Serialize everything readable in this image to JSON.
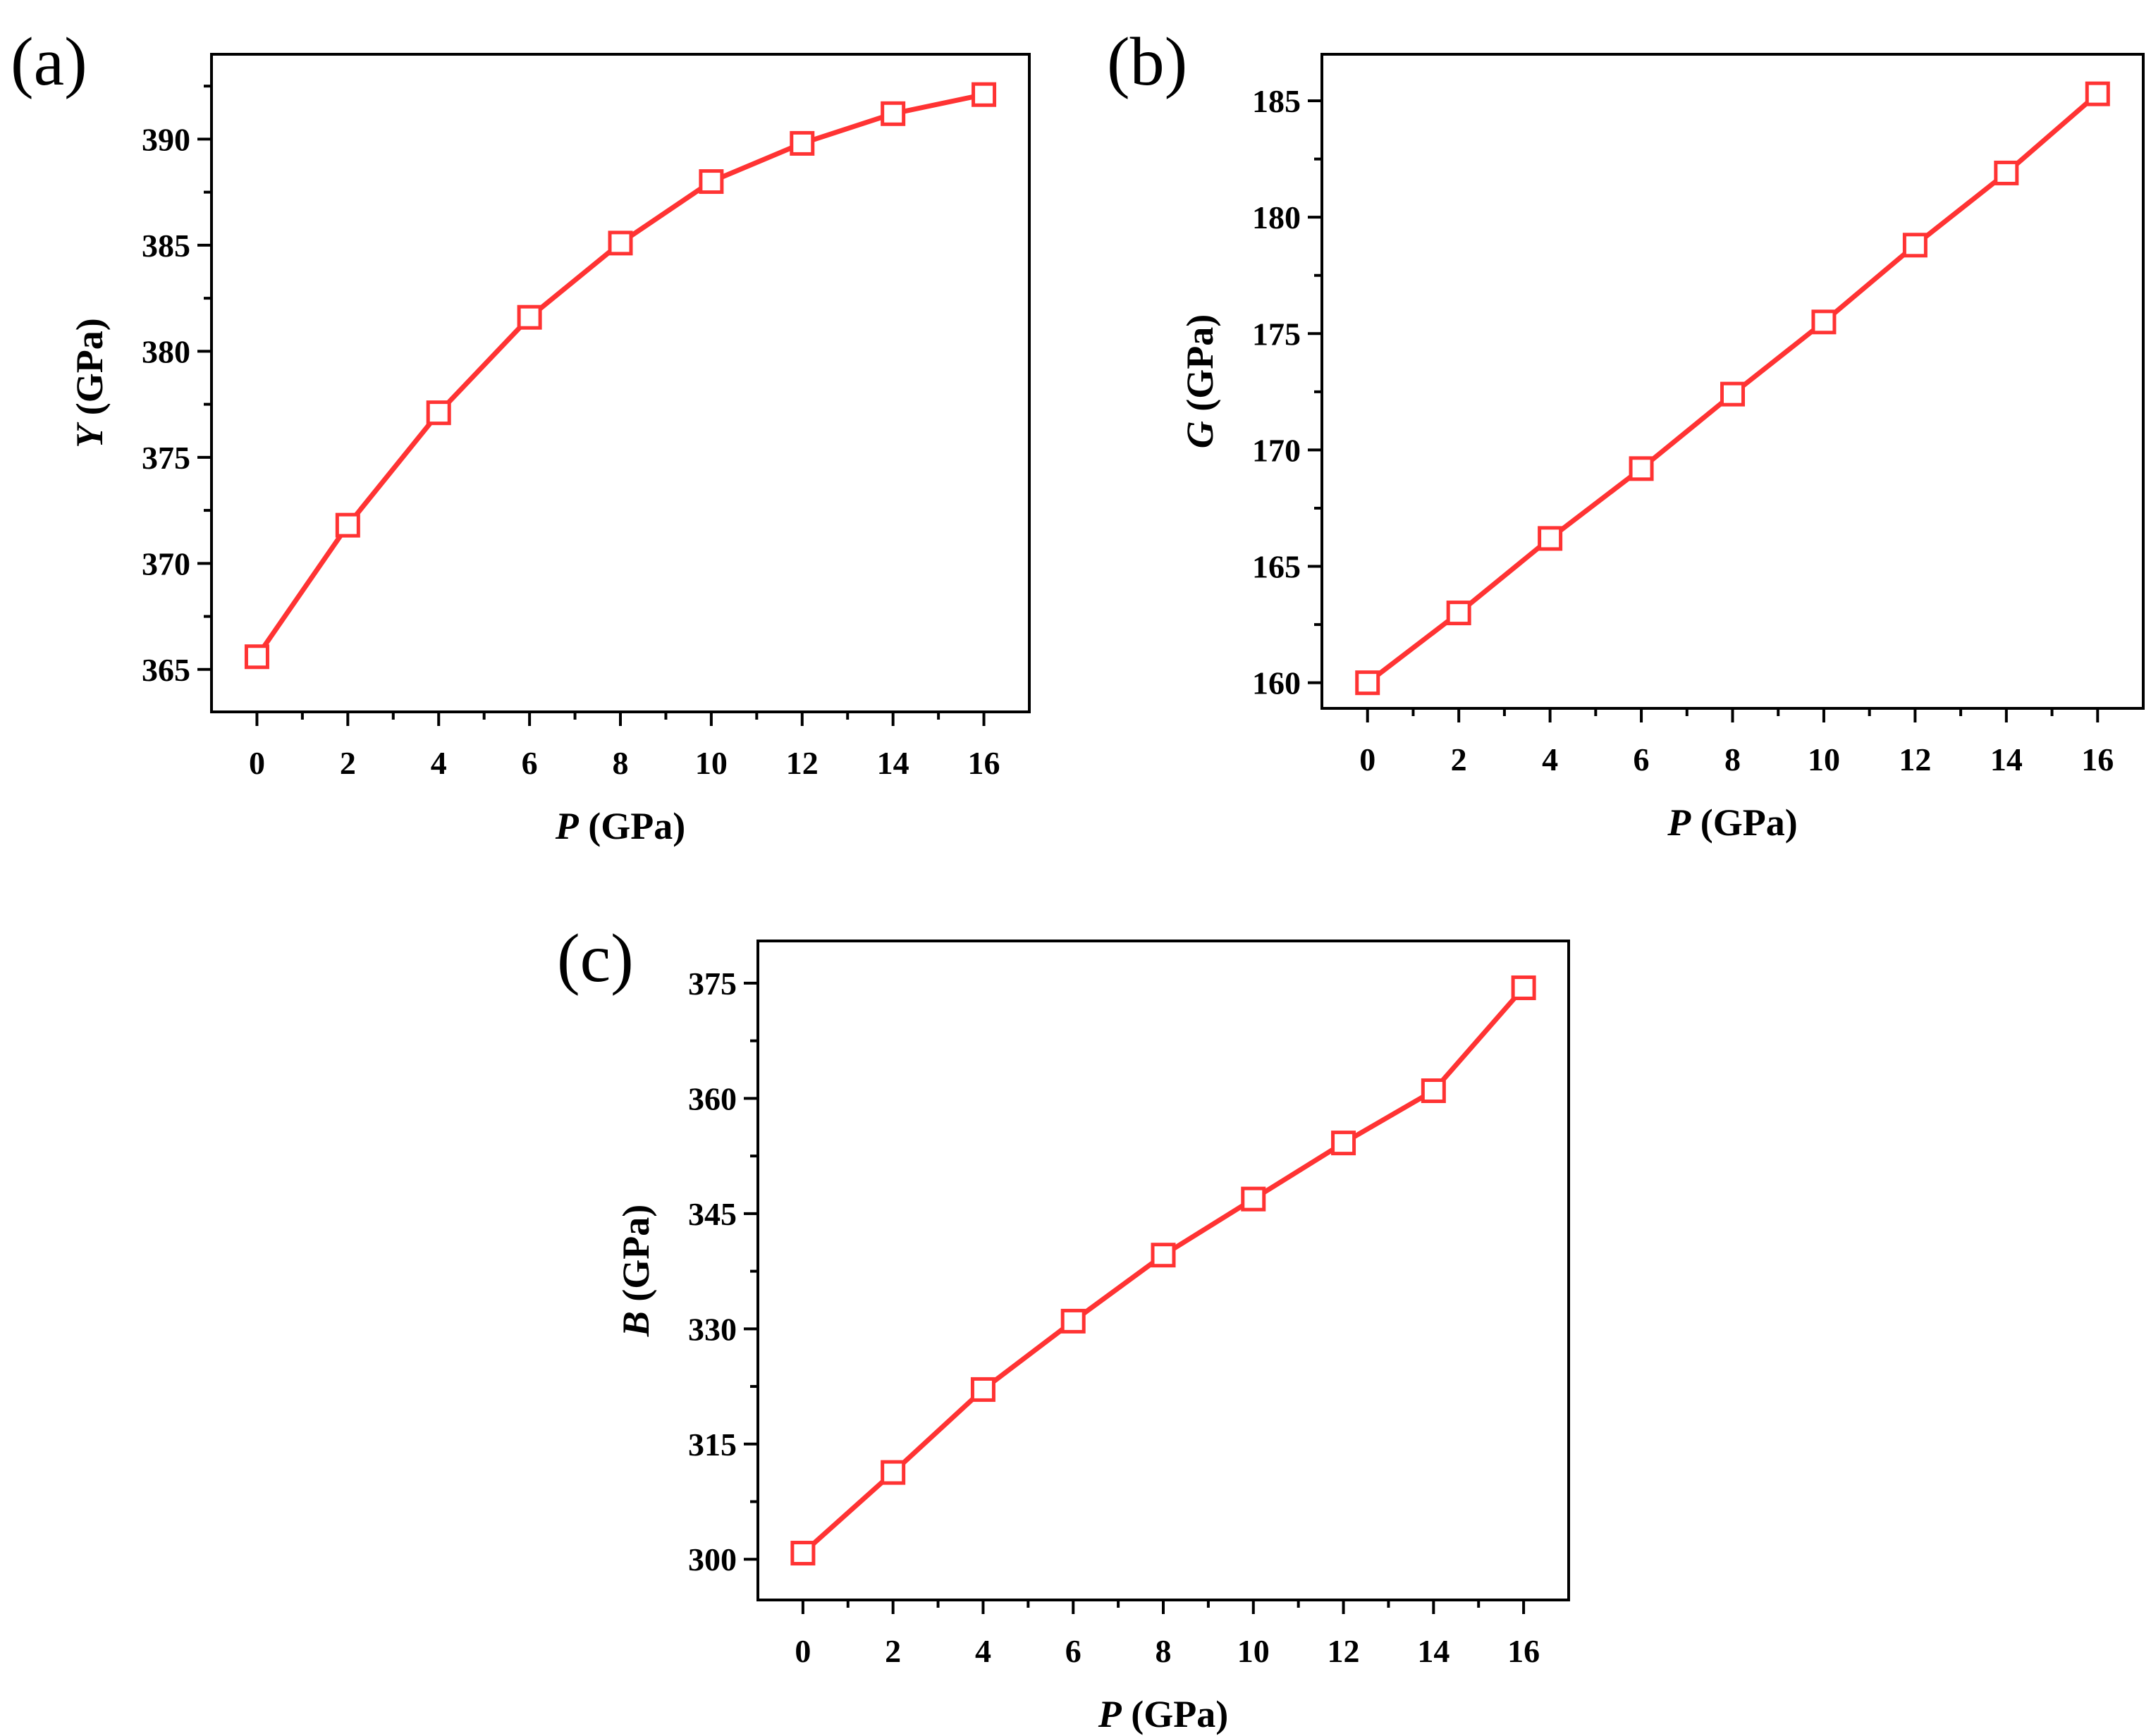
{
  "chart_data": [
    {
      "type": "line",
      "panel_label": "(a)",
      "xlabel_var": "P",
      "xlabel_unit": " (GPa)",
      "ylabel_var": "Y",
      "ylabel_unit": " (GPa)",
      "x": [
        0,
        2,
        4,
        6,
        8,
        10,
        12,
        14,
        16
      ],
      "xticks": [
        0,
        2,
        4,
        6,
        8,
        10,
        12,
        14,
        16
      ],
      "xlim": [
        -1,
        17
      ],
      "yticks": [
        365,
        370,
        375,
        380,
        385,
        390
      ],
      "ylim": [
        363.0,
        394.0
      ],
      "grid": false,
      "series": [
        {
          "values": [
            365.6,
            371.8,
            377.1,
            381.6,
            385.1,
            388.0,
            389.8,
            391.2,
            392.1
          ],
          "color": "#ff3333",
          "marker": "open-square"
        }
      ]
    },
    {
      "type": "line",
      "panel_label": "(b)",
      "xlabel_var": "P",
      "xlabel_unit": " (GPa)",
      "ylabel_var": "G",
      "ylabel_unit": " (GPa)",
      "x": [
        0,
        2,
        4,
        6,
        8,
        10,
        12,
        14,
        16
      ],
      "xticks": [
        0,
        2,
        4,
        6,
        8,
        10,
        12,
        14,
        16
      ],
      "xlim": [
        -1,
        17
      ],
      "yticks": [
        160,
        165,
        170,
        175,
        180,
        185
      ],
      "ylim": [
        158.9,
        187.0
      ],
      "grid": false,
      "series": [
        {
          "values": [
            160.0,
            163.0,
            166.2,
            169.2,
            172.4,
            175.5,
            178.8,
            181.9,
            185.3
          ],
          "color": "#ff3333",
          "marker": "open-square"
        }
      ]
    },
    {
      "type": "line",
      "panel_label": "(c)",
      "xlabel_var": "P",
      "xlabel_unit": " (GPa)",
      "ylabel_var": "B",
      "ylabel_unit": " (GPa)",
      "x": [
        0,
        2,
        4,
        6,
        8,
        10,
        12,
        14,
        16
      ],
      "xticks": [
        0,
        2,
        4,
        6,
        8,
        10,
        12,
        14,
        16
      ],
      "xlim": [
        -1,
        17
      ],
      "yticks": [
        300,
        315,
        330,
        345,
        360,
        375
      ],
      "ylim": [
        294.7,
        380.5
      ],
      "grid": false,
      "series": [
        {
          "values": [
            300.8,
            311.3,
            322.1,
            331.0,
            339.6,
            346.9,
            354.2,
            361.0,
            374.4
          ],
          "color": "#ff3333",
          "marker": "open-square"
        }
      ]
    }
  ]
}
